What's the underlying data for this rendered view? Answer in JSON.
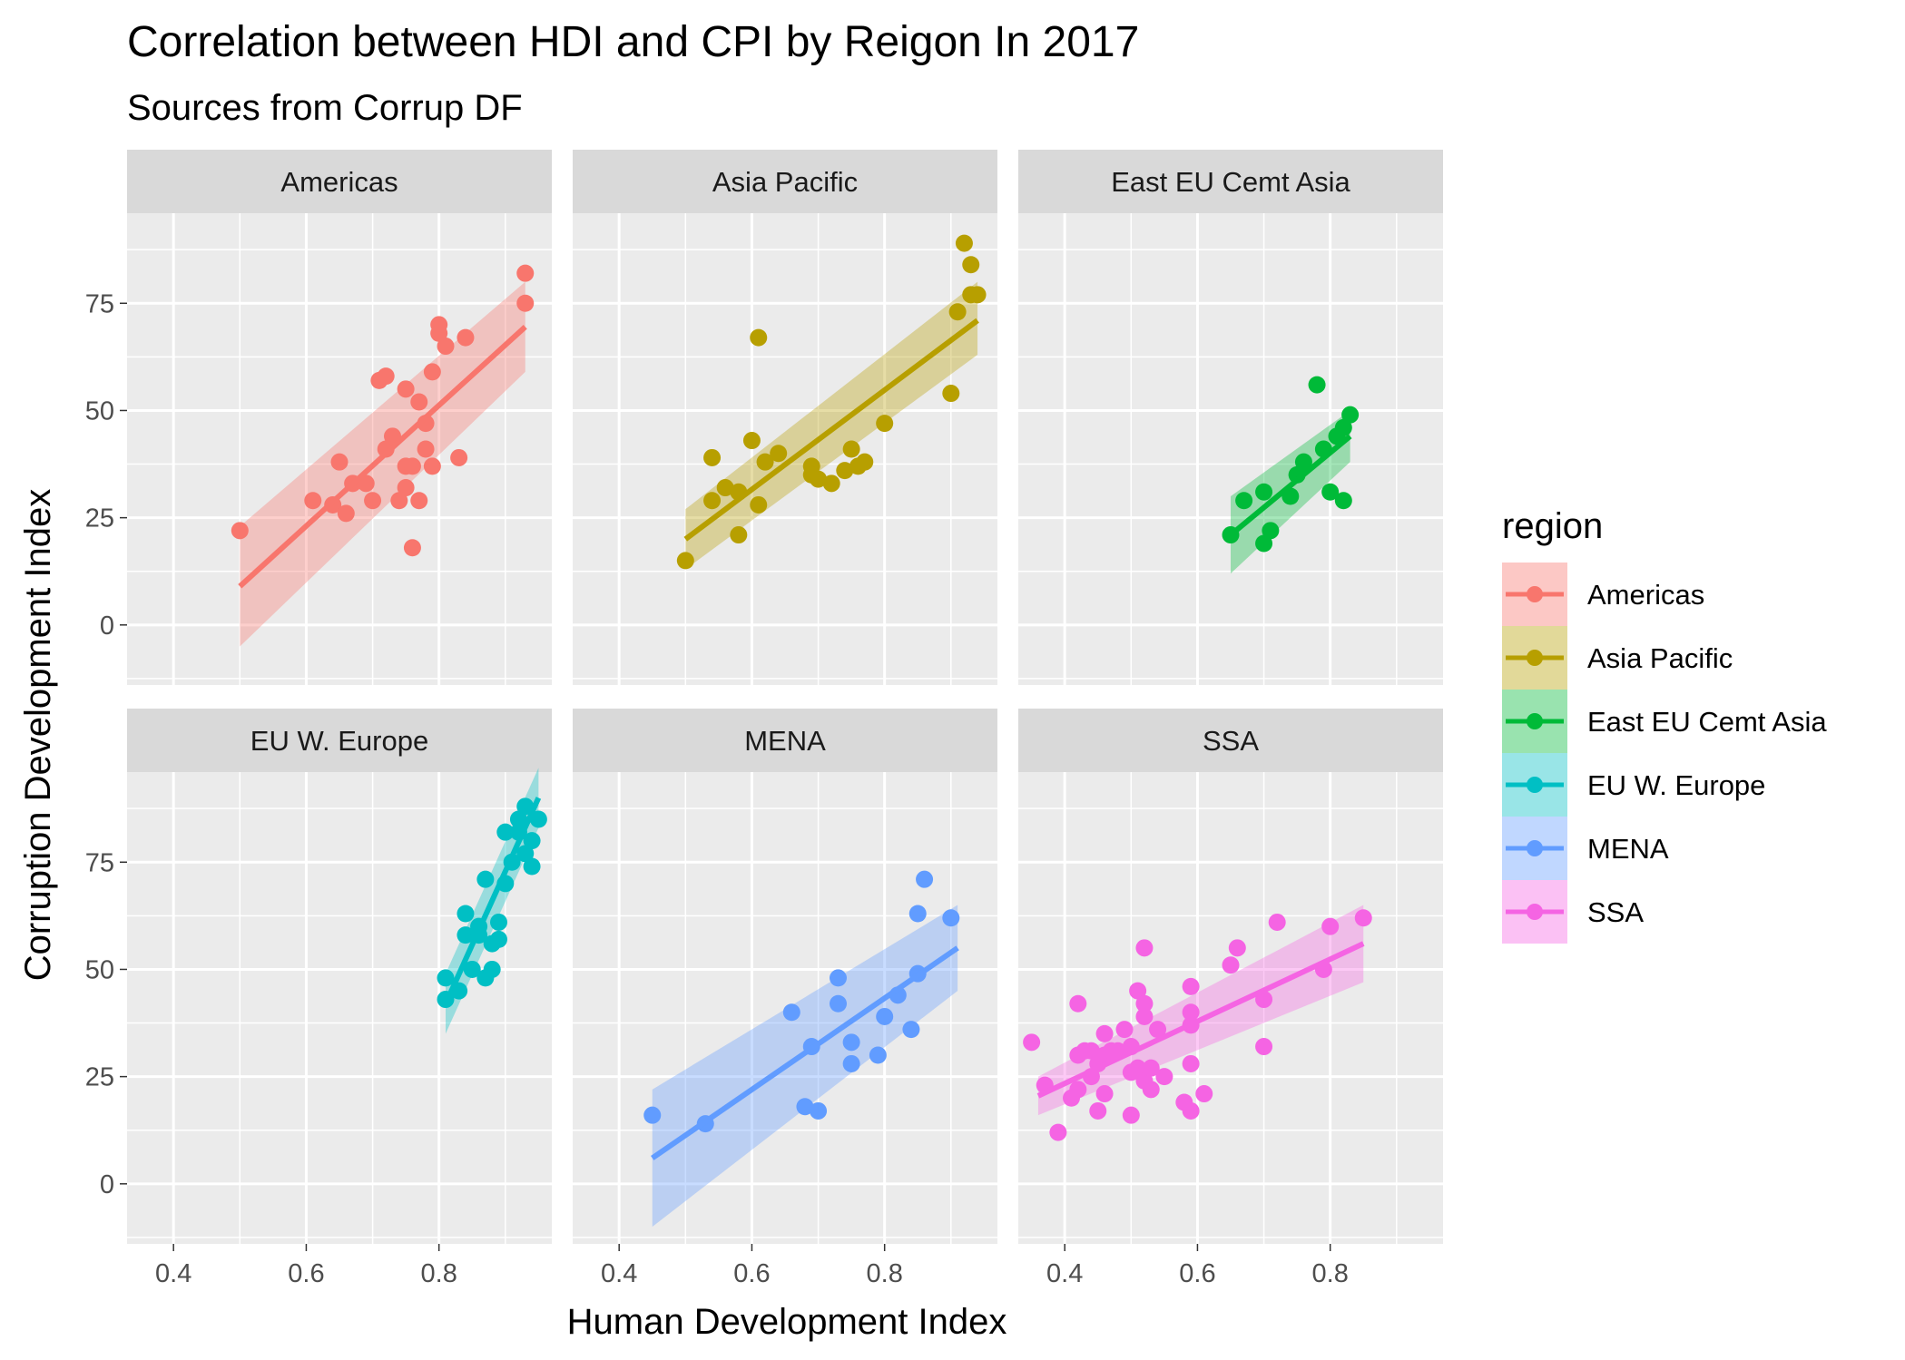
{
  "chart_data": {
    "type": "scatter",
    "title": "Correlation between HDI and CPI by Reigon In 2017",
    "subtitle": "Sources from Corrup DF",
    "xlabel": "Human Development Index",
    "ylabel": "Corruption Development Index",
    "xlim": [
      0.33,
      0.97
    ],
    "ylim": [
      -14,
      96
    ],
    "x_ticks": [
      0.4,
      0.6,
      0.8
    ],
    "x_tick_labels": [
      "0.4",
      "0.6",
      "0.8"
    ],
    "y_ticks": [
      0,
      25,
      50,
      75
    ],
    "y_tick_labels": [
      "0",
      "25",
      "50",
      "75"
    ],
    "grid": true,
    "smoothing": "linear fit with confidence band",
    "legend": {
      "title": "region",
      "placement": "right"
    },
    "facets": [
      {
        "name": "Americas",
        "color": "#F8766D",
        "fit": {
          "x": [
            0.5,
            0.93
          ],
          "y": [
            9,
            69.5
          ],
          "ci_low": [
            -5,
            59
          ],
          "ci_high": [
            23,
            80
          ]
        },
        "points": [
          [
            0.5,
            22
          ],
          [
            0.61,
            29
          ],
          [
            0.64,
            28
          ],
          [
            0.65,
            38
          ],
          [
            0.66,
            26
          ],
          [
            0.67,
            33
          ],
          [
            0.69,
            33
          ],
          [
            0.7,
            29
          ],
          [
            0.71,
            57
          ],
          [
            0.72,
            58
          ],
          [
            0.72,
            41
          ],
          [
            0.73,
            44
          ],
          [
            0.74,
            29
          ],
          [
            0.75,
            55
          ],
          [
            0.75,
            37
          ],
          [
            0.75,
            32
          ],
          [
            0.76,
            37
          ],
          [
            0.76,
            18
          ],
          [
            0.77,
            29
          ],
          [
            0.77,
            52
          ],
          [
            0.78,
            47
          ],
          [
            0.78,
            41
          ],
          [
            0.79,
            37
          ],
          [
            0.79,
            59
          ],
          [
            0.8,
            68
          ],
          [
            0.8,
            70
          ],
          [
            0.81,
            65
          ],
          [
            0.83,
            39
          ],
          [
            0.84,
            67
          ],
          [
            0.93,
            75
          ],
          [
            0.93,
            82
          ]
        ]
      },
      {
        "name": "Asia Pacific",
        "color": "#B79F00",
        "fit": {
          "x": [
            0.5,
            0.94
          ],
          "y": [
            20,
            71
          ],
          "ci_low": [
            13,
            63
          ],
          "ci_high": [
            27,
            80
          ]
        },
        "points": [
          [
            0.5,
            15
          ],
          [
            0.54,
            29
          ],
          [
            0.54,
            39
          ],
          [
            0.56,
            32
          ],
          [
            0.58,
            21
          ],
          [
            0.58,
            31
          ],
          [
            0.6,
            43
          ],
          [
            0.61,
            28
          ],
          [
            0.61,
            67
          ],
          [
            0.62,
            38
          ],
          [
            0.64,
            40
          ],
          [
            0.69,
            37
          ],
          [
            0.69,
            35
          ],
          [
            0.7,
            34
          ],
          [
            0.72,
            33
          ],
          [
            0.74,
            36
          ],
          [
            0.75,
            41
          ],
          [
            0.76,
            37
          ],
          [
            0.77,
            38
          ],
          [
            0.8,
            47
          ],
          [
            0.9,
            54
          ],
          [
            0.91,
            73
          ],
          [
            0.92,
            89
          ],
          [
            0.93,
            84
          ],
          [
            0.93,
            77
          ],
          [
            0.94,
            77
          ]
        ]
      },
      {
        "name": "East EU Cemt Asia",
        "color": "#00BA38",
        "fit": {
          "x": [
            0.65,
            0.83
          ],
          "y": [
            21,
            44
          ],
          "ci_low": [
            12,
            38
          ],
          "ci_high": [
            30,
            50
          ]
        },
        "points": [
          [
            0.65,
            21
          ],
          [
            0.67,
            29
          ],
          [
            0.7,
            31
          ],
          [
            0.7,
            19
          ],
          [
            0.71,
            22
          ],
          [
            0.74,
            30
          ],
          [
            0.75,
            35
          ],
          [
            0.76,
            38
          ],
          [
            0.78,
            56
          ],
          [
            0.79,
            41
          ],
          [
            0.8,
            31
          ],
          [
            0.81,
            44
          ],
          [
            0.82,
            46
          ],
          [
            0.82,
            29
          ],
          [
            0.83,
            49
          ]
        ]
      },
      {
        "name": "EU W. Europe",
        "color": "#00BFC4",
        "fit": {
          "x": [
            0.81,
            0.95
          ],
          "y": [
            42,
            90
          ],
          "ci_low": [
            35,
            83
          ],
          "ci_high": [
            49,
            97
          ]
        },
        "points": [
          [
            0.81,
            48
          ],
          [
            0.81,
            43
          ],
          [
            0.83,
            45
          ],
          [
            0.84,
            63
          ],
          [
            0.84,
            58
          ],
          [
            0.85,
            50
          ],
          [
            0.86,
            60
          ],
          [
            0.86,
            58
          ],
          [
            0.87,
            71
          ],
          [
            0.87,
            48
          ],
          [
            0.88,
            50
          ],
          [
            0.88,
            56
          ],
          [
            0.89,
            57
          ],
          [
            0.89,
            61
          ],
          [
            0.9,
            70
          ],
          [
            0.9,
            82
          ],
          [
            0.91,
            75
          ],
          [
            0.92,
            85
          ],
          [
            0.92,
            82
          ],
          [
            0.93,
            88
          ],
          [
            0.93,
            77
          ],
          [
            0.94,
            74
          ],
          [
            0.94,
            80
          ],
          [
            0.95,
            85
          ]
        ]
      },
      {
        "name": "MENA",
        "color": "#619CFF",
        "fit": {
          "x": [
            0.45,
            0.91
          ],
          "y": [
            6,
            55
          ],
          "ci_low": [
            -10,
            45
          ],
          "ci_high": [
            22,
            65
          ]
        },
        "points": [
          [
            0.45,
            16
          ],
          [
            0.53,
            14
          ],
          [
            0.66,
            40
          ],
          [
            0.68,
            18
          ],
          [
            0.69,
            32
          ],
          [
            0.7,
            17
          ],
          [
            0.73,
            48
          ],
          [
            0.73,
            42
          ],
          [
            0.75,
            33
          ],
          [
            0.75,
            28
          ],
          [
            0.79,
            30
          ],
          [
            0.8,
            39
          ],
          [
            0.82,
            44
          ],
          [
            0.84,
            36
          ],
          [
            0.85,
            49
          ],
          [
            0.85,
            63
          ],
          [
            0.86,
            71
          ],
          [
            0.9,
            62
          ]
        ]
      },
      {
        "name": "SSA",
        "color": "#F564E3",
        "fit": {
          "x": [
            0.36,
            0.85
          ],
          "y": [
            20.5,
            56
          ],
          "ci_low": [
            16,
            47
          ],
          "ci_high": [
            25,
            65
          ]
        },
        "points": [
          [
            0.35,
            33
          ],
          [
            0.37,
            23
          ],
          [
            0.39,
            12
          ],
          [
            0.41,
            20
          ],
          [
            0.42,
            22
          ],
          [
            0.42,
            30
          ],
          [
            0.42,
            42
          ],
          [
            0.43,
            31
          ],
          [
            0.44,
            25
          ],
          [
            0.44,
            31
          ],
          [
            0.45,
            17
          ],
          [
            0.45,
            28
          ],
          [
            0.46,
            21
          ],
          [
            0.46,
            30
          ],
          [
            0.46,
            35
          ],
          [
            0.47,
            31
          ],
          [
            0.48,
            31
          ],
          [
            0.49,
            36
          ],
          [
            0.5,
            16
          ],
          [
            0.5,
            26
          ],
          [
            0.5,
            32
          ],
          [
            0.51,
            45
          ],
          [
            0.51,
            27
          ],
          [
            0.52,
            39
          ],
          [
            0.52,
            42
          ],
          [
            0.52,
            24
          ],
          [
            0.53,
            27
          ],
          [
            0.53,
            22
          ],
          [
            0.54,
            36
          ],
          [
            0.52,
            55
          ],
          [
            0.55,
            25
          ],
          [
            0.58,
            19
          ],
          [
            0.59,
            46
          ],
          [
            0.59,
            40
          ],
          [
            0.59,
            37
          ],
          [
            0.59,
            17
          ],
          [
            0.59,
            28
          ],
          [
            0.61,
            21
          ],
          [
            0.65,
            51
          ],
          [
            0.66,
            55
          ],
          [
            0.7,
            43
          ],
          [
            0.7,
            32
          ],
          [
            0.72,
            61
          ],
          [
            0.79,
            50
          ],
          [
            0.8,
            60
          ],
          [
            0.85,
            62
          ]
        ]
      }
    ]
  }
}
